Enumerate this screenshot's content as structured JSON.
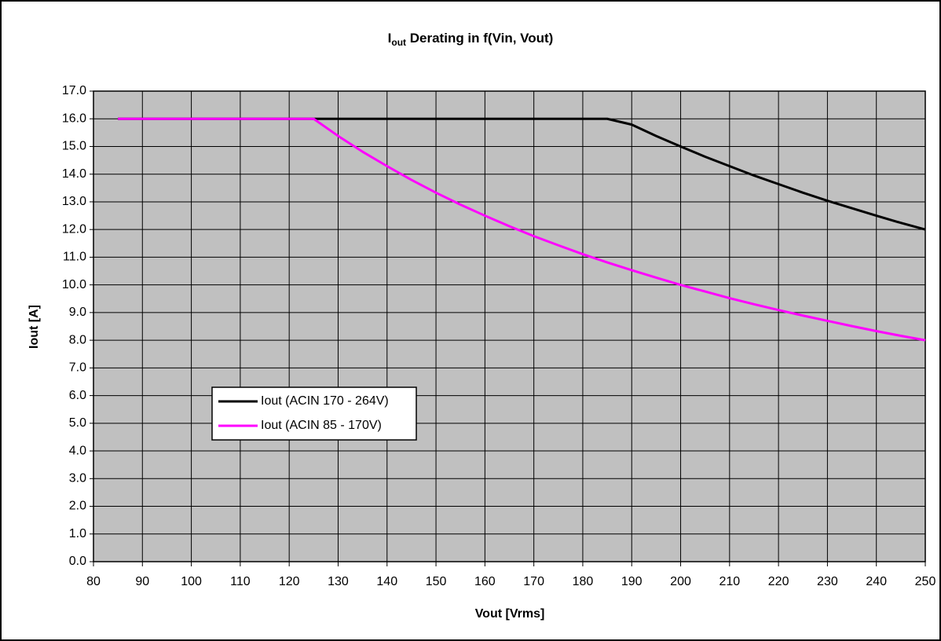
{
  "chart_data": {
    "type": "line",
    "title": [
      "I",
      "out",
      " Derating in f(Vin, Vout)"
    ],
    "x_label": "Vout [Vrms]",
    "y_label": "Iout [A]",
    "x": [
      85,
      90,
      95,
      100,
      105,
      110,
      115,
      120,
      125,
      130,
      135,
      140,
      145,
      150,
      155,
      160,
      165,
      170,
      175,
      180,
      185,
      190,
      195,
      200,
      205,
      210,
      215,
      220,
      225,
      230,
      235,
      240,
      245,
      250
    ],
    "series": [
      {
        "name": "Iout (ACIN 170 - 264V)",
        "color": "#000000",
        "values": [
          16,
          16,
          16,
          16,
          16,
          16,
          16,
          16,
          16,
          16,
          16,
          16,
          16,
          16,
          16,
          16,
          16,
          16,
          16,
          16,
          16,
          15.79,
          15.38,
          15,
          14.63,
          14.29,
          13.95,
          13.64,
          13.33,
          13.04,
          12.77,
          12.5,
          12.24,
          12
        ]
      },
      {
        "name": "Iout (ACIN 85 - 170V)",
        "color": "#ff00ff",
        "values": [
          16,
          16,
          16,
          16,
          16,
          16,
          16,
          16,
          16,
          15.38,
          14.81,
          14.29,
          13.79,
          13.33,
          12.9,
          12.5,
          12.12,
          11.76,
          11.43,
          11.11,
          10.81,
          10.53,
          10.26,
          10,
          9.76,
          9.52,
          9.3,
          9.09,
          8.89,
          8.7,
          8.51,
          8.33,
          8.16,
          8
        ]
      }
    ],
    "xlim": [
      80,
      250
    ],
    "xticks": [
      80,
      90,
      100,
      110,
      120,
      130,
      140,
      150,
      160,
      170,
      180,
      190,
      200,
      210,
      220,
      230,
      240,
      250
    ],
    "ylim": [
      0,
      17
    ],
    "yticks": [
      {
        "value": 0,
        "label": "0.0"
      },
      {
        "value": 1,
        "label": "1.0"
      },
      {
        "value": 2,
        "label": "2.0"
      },
      {
        "value": 3,
        "label": "3.0"
      },
      {
        "value": 4,
        "label": "4.0"
      },
      {
        "value": 5,
        "label": "5.0"
      },
      {
        "value": 6,
        "label": "6.0"
      },
      {
        "value": 7,
        "label": "7.0"
      },
      {
        "value": 8,
        "label": "8.0"
      },
      {
        "value": 9,
        "label": "9.0"
      },
      {
        "value": 10,
        "label": "10.0"
      },
      {
        "value": 11,
        "label": "11.0"
      },
      {
        "value": 12,
        "label": "12.0"
      },
      {
        "value": 13,
        "label": "13.0"
      },
      {
        "value": 14,
        "label": "14.0"
      },
      {
        "value": 15,
        "label": "15.0"
      },
      {
        "value": 16,
        "label": "16.0"
      },
      {
        "value": 17,
        "label": "17.0"
      }
    ],
    "grid": true,
    "plot_background": "#c0c0c0"
  }
}
